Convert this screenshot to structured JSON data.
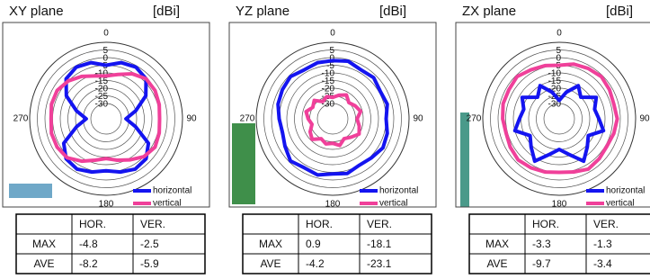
{
  "chart_data": [
    {
      "type": "polar",
      "title": "XY plane",
      "unit": "[dBi]",
      "x": [
        0,
        15,
        30,
        45,
        60,
        75,
        90,
        105,
        120,
        135,
        150,
        165,
        180,
        195,
        210,
        225,
        240,
        255,
        270,
        285,
        300,
        315,
        330,
        345
      ],
      "angle_ticks": [
        0,
        90,
        180,
        270
      ],
      "rlim": [
        -40,
        10
      ],
      "rticks": [
        5,
        0,
        -5,
        -10,
        -15,
        -20,
        -25,
        -30
      ],
      "series": [
        {
          "name": "horizontal",
          "color": "#1414f0",
          "values": [
            -5,
            -2,
            -1,
            -3,
            -10,
            -20,
            -27,
            -20,
            -8,
            -3,
            -2,
            -4,
            -6,
            -4,
            -2,
            -3,
            -8,
            -20,
            -27,
            -20,
            -10,
            -3,
            -1,
            -2
          ]
        },
        {
          "name": "vertical",
          "color": "#f0409a",
          "values": [
            -12,
            -10,
            -6,
            -3,
            -3,
            -4,
            -5,
            -4,
            -3,
            -5,
            -9,
            -12,
            -14,
            -12,
            -8,
            -4,
            -3,
            -3,
            -4,
            -3,
            -3,
            -5,
            -8,
            -11
          ]
        }
      ],
      "table": {
        "columns": [
          "HOR.",
          "VER."
        ],
        "rows": [
          {
            "label": "MAX",
            "values": [
              -4.8,
              -2.5
            ]
          },
          {
            "label": "AVE",
            "values": [
              -8.2,
              -5.9
            ]
          }
        ]
      }
    },
    {
      "type": "polar",
      "title": "YZ plane",
      "unit": "[dBi]",
      "x": [
        0,
        15,
        30,
        45,
        60,
        75,
        90,
        105,
        120,
        135,
        150,
        165,
        180,
        195,
        210,
        225,
        240,
        255,
        270,
        285,
        300,
        315,
        330,
        345
      ],
      "angle_ticks": [
        0,
        90,
        180,
        270
      ],
      "rlim": [
        -40,
        10
      ],
      "rticks": [
        5,
        0,
        -5,
        -10,
        -15,
        -20,
        -25,
        -30
      ],
      "series": [
        {
          "name": "horizontal",
          "color": "#1414f0",
          "values": [
            -2,
            -1,
            -3,
            -2,
            -4,
            -3,
            -5,
            -3,
            -2,
            -4,
            -5,
            -3,
            -4,
            -2,
            -3,
            -1,
            -4,
            -6,
            -5,
            -3,
            -2,
            -1,
            -3,
            -2
          ]
        },
        {
          "name": "vertical",
          "color": "#f0409a",
          "values": [
            -26,
            -24,
            -22,
            -25,
            -23,
            -21,
            -24,
            -22,
            -20,
            -23,
            -25,
            -22,
            -24,
            -23,
            -25,
            -21,
            -23,
            -26,
            -24,
            -22,
            -25,
            -23,
            -27,
            -25
          ]
        }
      ],
      "table": {
        "columns": [
          "HOR.",
          "VER."
        ],
        "rows": [
          {
            "label": "MAX",
            "values": [
              0.9,
              -18.1
            ]
          },
          {
            "label": "AVE",
            "values": [
              -4.2,
              -23.1
            ]
          }
        ]
      }
    },
    {
      "type": "polar",
      "title": "ZX plane",
      "unit": "[dBi]",
      "x": [
        0,
        15,
        30,
        45,
        60,
        75,
        90,
        105,
        120,
        135,
        150,
        165,
        180,
        195,
        210,
        225,
        240,
        255,
        270,
        285,
        300,
        315,
        330,
        345
      ],
      "angle_ticks": [
        0,
        90,
        180,
        270
      ],
      "rlim": [
        -40,
        10
      ],
      "rticks": [
        5,
        0,
        -5,
        -10,
        -15,
        -20,
        -25,
        -30
      ],
      "series": [
        {
          "name": "horizontal",
          "color": "#1414f0",
          "values": [
            -28,
            -22,
            -15,
            -20,
            -12,
            -16,
            -14,
            -10,
            -18,
            -14,
            -8,
            -16,
            -20,
            -16,
            -8,
            -14,
            -18,
            -10,
            -14,
            -16,
            -12,
            -20,
            -15,
            -22
          ]
        },
        {
          "name": "vertical",
          "color": "#f0409a",
          "values": [
            -5,
            -3,
            -2,
            -1,
            -2,
            -3,
            -2,
            -3,
            -4,
            -3,
            -2,
            -4,
            -5,
            -4,
            -3,
            -2,
            -3,
            -4,
            -3,
            -2,
            -2,
            -1,
            -3,
            -4
          ]
        }
      ],
      "table": {
        "columns": [
          "HOR.",
          "VER."
        ],
        "rows": [
          {
            "label": "MAX",
            "values": [
              -3.3,
              -1.3
            ]
          },
          {
            "label": "AVE",
            "values": [
              -9.7,
              -3.4
            ]
          }
        ]
      }
    }
  ]
}
